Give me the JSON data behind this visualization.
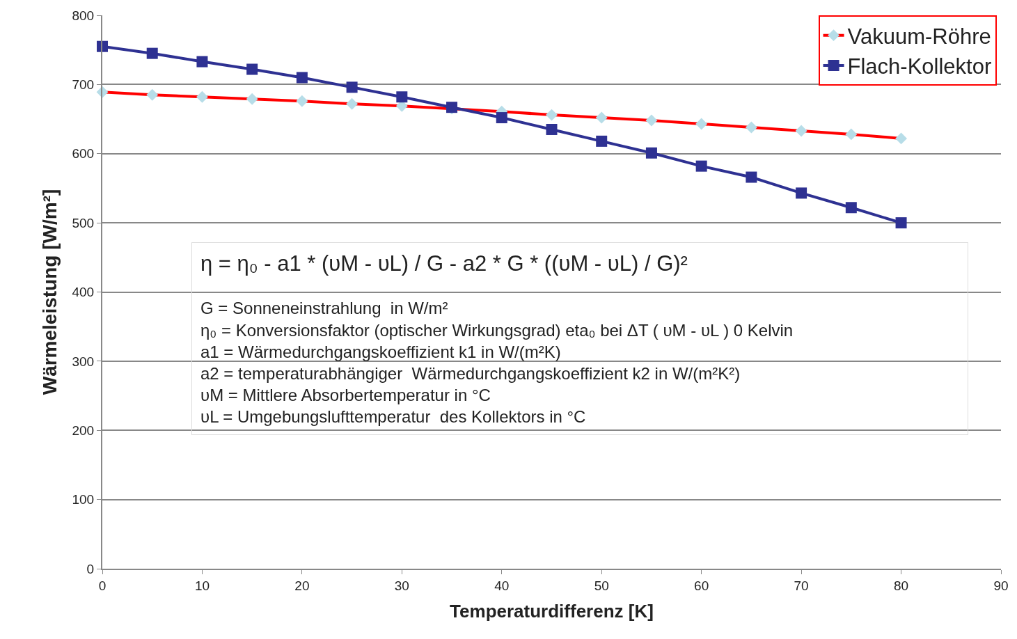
{
  "chart_data": {
    "type": "line",
    "xlabel": "Temperaturdifferenz [K]",
    "ylabel": "Wärmeleistung [W/m²]",
    "x": [
      0,
      5,
      10,
      15,
      20,
      25,
      30,
      35,
      40,
      45,
      50,
      55,
      60,
      65,
      70,
      75,
      80
    ],
    "series": [
      {
        "name": "Vakuum-Röhre",
        "color": "#ff0000",
        "colors": [
          "#b7dde8",
          "#b7dde8",
          "#b7dde8",
          "#b7dde8",
          "#b7dde8",
          "#b7dde8",
          "#b7dde8",
          "#b7dde8",
          "#b7dde8",
          "#b7dde8",
          "#b7dde8",
          "#b7dde8",
          "#b7dde8",
          "#b7dde8",
          "#b7dde8",
          "#b7dde8",
          "#b7dde8"
        ],
        "marker": "diamond",
        "values": [
          689,
          685,
          682,
          679,
          676,
          672,
          669,
          665,
          661,
          656,
          652,
          648,
          643,
          638,
          633,
          628,
          622
        ]
      },
      {
        "name": "Flach-Kollektor",
        "color": "#2e3192",
        "marker": "square",
        "values": [
          755,
          745,
          733,
          722,
          710,
          696,
          682,
          667,
          652,
          635,
          618,
          601,
          582,
          566,
          543,
          522,
          500
        ]
      }
    ],
    "xlim": [
      0,
      90
    ],
    "xticks": [
      0,
      10,
      20,
      30,
      40,
      50,
      60,
      70,
      80,
      90
    ],
    "ylim": [
      0,
      800
    ],
    "yticks": [
      0,
      100,
      200,
      300,
      400,
      500,
      600,
      700,
      800
    ],
    "grid": "y",
    "legend": "top right",
    "line_style": "solid",
    "annotations": [
      "η = η₀ - a1 * (υM - υL) / G - a2 * G * ((υM - υL) / G)²",
      "G = Sonneneinstrahlung  in W/m²",
      "η₀ = Konversionsfaktor (optischer Wirkungsgrad) eta₀ bei ΔT ( υM - υL ) 0 Kelvin",
      "a1 = Wärmedurchgangskoeffizient k1 in W/(m²K)",
      "a2 = temperaturabhängiger  Wärmedurchgangskoeffizient k2 in W/(m²K²)",
      "υM = Mittlere Absorbertemperatur in °C",
      "υL = Umgebungslufttemperatur  des Kollektors in °C"
    ]
  }
}
